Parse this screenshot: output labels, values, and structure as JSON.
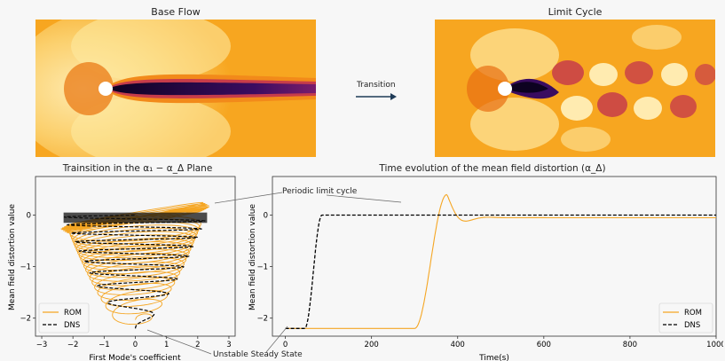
{
  "top": {
    "left_title": "Base Flow",
    "right_title": "Limit Cycle",
    "arrow_label": "Transition"
  },
  "bottom_left": {
    "title": "Trainsition in the α₁ − α_Δ Plane",
    "xlabel": "First Mode's coefficient",
    "ylabel": "Mean field distortion value",
    "x_ticks": [
      "−3",
      "−2",
      "−1",
      "0",
      "1",
      "2",
      "3"
    ],
    "y_ticks": [
      "0",
      "−1",
      "−2"
    ],
    "legend": [
      "ROM",
      "DNS"
    ]
  },
  "bottom_right": {
    "title": "Time evolution of the mean field distortion (α_Δ)",
    "xlabel": "Time(s)",
    "ylabel": "Mean field distortion value",
    "x_ticks": [
      "0",
      "200",
      "400",
      "600",
      "800",
      "1000"
    ],
    "y_ticks": [
      "0",
      "−1",
      "−2"
    ],
    "legend": [
      "ROM",
      "DNS"
    ]
  },
  "annotations": {
    "limit_cycle": "Periodic limit cycle",
    "steady_state": "Unstable Steady State"
  },
  "colors": {
    "rom": "#f5a623",
    "dns": "#000000",
    "arrow": "#1f3b57"
  },
  "chart_data": [
    {
      "type": "line",
      "title": "Trainsition in the α₁ − α_Δ Plane",
      "xlabel": "First Mode's coefficient",
      "ylabel": "Mean field distortion value",
      "xlim": [
        -3.2,
        3.2
      ],
      "ylim": [
        -2.35,
        0.75
      ],
      "series": [
        {
          "name": "ROM",
          "desc": "expanding spiral from (0,-2.2) to limit cycle near y=0 with amplitude ~2.4"
        },
        {
          "name": "DNS",
          "desc": "dashed spiral from (0,-2.2) to limit cycle near y=0 with amplitude ~2.3"
        }
      ]
    },
    {
      "type": "line",
      "title": "Time evolution of the mean field distortion (α_Δ)",
      "xlabel": "Time(s)",
      "ylabel": "Mean field distortion value",
      "xlim": [
        -30,
        1000
      ],
      "ylim": [
        -2.35,
        0.75
      ],
      "series": [
        {
          "name": "ROM",
          "x": [
            0,
            290,
            320,
            350,
            375,
            395,
            420,
            450,
            500,
            600,
            1000
          ],
          "y": [
            -2.2,
            -2.2,
            -1.8,
            -0.7,
            0.4,
            0.2,
            -0.1,
            -0.05,
            -0.05,
            -0.05,
            -0.05
          ]
        },
        {
          "name": "DNS",
          "x": [
            0,
            40,
            50,
            60,
            70,
            80,
            90,
            1000
          ],
          "y": [
            -2.2,
            -2.2,
            -1.6,
            -0.6,
            -0.1,
            0.0,
            0.0,
            0.0
          ]
        }
      ]
    }
  ]
}
